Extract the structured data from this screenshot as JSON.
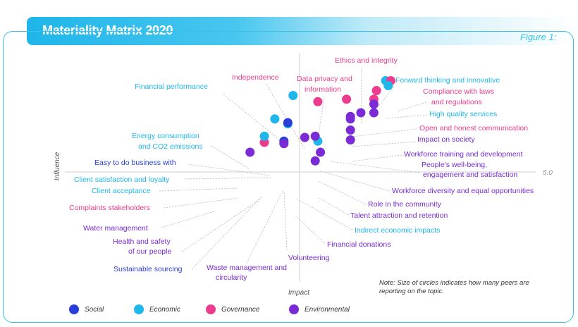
{
  "header": {
    "title": "Materiality Matrix 2020",
    "figure_label": "Figure 1:"
  },
  "note": "Note: Size of circles indicates how many peers are reporting on the topic.",
  "colors": {
    "Social": "#2a3fd6",
    "Economic": "#1fb7ea",
    "Governance": "#ec3c8e",
    "Environmental": "#7a2bd6"
  },
  "legend": [
    {
      "name": "Social",
      "color": "#2a3fd6"
    },
    {
      "name": "Economic",
      "color": "#1fb7ea"
    },
    {
      "name": "Governance",
      "color": "#ec3c8e"
    },
    {
      "name": "Environmental",
      "color": "#7a2bd6"
    }
  ],
  "chart_data": {
    "type": "scatter",
    "xlabel": "Impact",
    "ylabel": "Influence",
    "reference_value": "5.0",
    "points": [
      {
        "label": "Ethics and integrity",
        "category": "Governance",
        "x": 5.9,
        "y": 6.6
      },
      {
        "label": "Forward thinking and innovative",
        "category": "Economic",
        "x": 6.6,
        "y": 7.4
      },
      {
        "label": "Compliance with laws and regulations",
        "category": "Governance",
        "x": 7.0,
        "y": 7.4
      },
      {
        "label": "High quality services",
        "category": "Economic",
        "x": 6.8,
        "y": 7.0
      },
      {
        "label": "Open and honest communication",
        "category": "Governance",
        "x": 5.7,
        "y": 5.9
      },
      {
        "label": "Impact on society",
        "category": "Environmental",
        "x": 5.7,
        "y": 5.5
      },
      {
        "label": "Workforce training and development",
        "category": "Environmental",
        "x": 5.7,
        "y": 4.8
      },
      {
        "label": "People's well-being, engagement and satisfaction",
        "category": "Environmental",
        "x": 4.7,
        "y": 4.8
      },
      {
        "label": "Workforce diversity and equal opportunities",
        "category": "Environmental",
        "x": 3.9,
        "y": 4.3
      },
      {
        "label": "Role in the community",
        "category": "Environmental",
        "x": 3.9,
        "y": 3.4
      },
      {
        "label": "Talent attraction and retention",
        "category": "Environmental",
        "x": 3.9,
        "y": 2.6
      },
      {
        "label": "Indirect economic impacts",
        "category": "Economic",
        "x": 1.4,
        "y": 2.5
      },
      {
        "label": "Financial donations",
        "category": "Environmental",
        "x": 1.6,
        "y": 1.6
      },
      {
        "label": "Volunteering",
        "category": "Environmental",
        "x": 1.2,
        "y": 0.9
      },
      {
        "label": "Waste management and circularity",
        "category": "Environmental",
        "x": 0.4,
        "y": 2.8
      },
      {
        "label": "Sustainable sourcing",
        "category": "Social",
        "x": -1.2,
        "y": 2.5
      },
      {
        "label": "Health and safety of our people",
        "category": "Environmental",
        "x": -1.2,
        "y": 2.3
      },
      {
        "label": "Water management",
        "category": "Environmental",
        "x": -3.8,
        "y": 1.6
      },
      {
        "label": "Complaints stakeholders",
        "category": "Governance",
        "x": -2.7,
        "y": 2.4
      },
      {
        "label": "Client acceptance",
        "category": "Economic",
        "x": -2.7,
        "y": 2.9
      },
      {
        "label": "Client satisfaction and loyalty",
        "category": "Economic",
        "x": -0.9,
        "y": 3.9
      },
      {
        "label": "Easy to do business with",
        "category": "Social",
        "x": -0.9,
        "y": 4.0
      },
      {
        "label": "Energy consumption and CO2 emissions",
        "category": "Economic",
        "x": -1.9,
        "y": 4.3
      },
      {
        "label": "Financial performance",
        "category": "Economic",
        "x": -0.5,
        "y": 6.2
      },
      {
        "label": "Independence",
        "category": "Governance",
        "x": 1.4,
        "y": 5.7
      },
      {
        "label": "Data privacy and information",
        "category": "Governance",
        "x": 3.6,
        "y": 5.9
      },
      {
        "label": "Unlabeled",
        "category": "Environmental",
        "x": 3.9,
        "y": 4.5
      },
      {
        "label": "Unlabeled",
        "category": "Environmental",
        "x": 1.2,
        "y": 2.9
      }
    ]
  }
}
